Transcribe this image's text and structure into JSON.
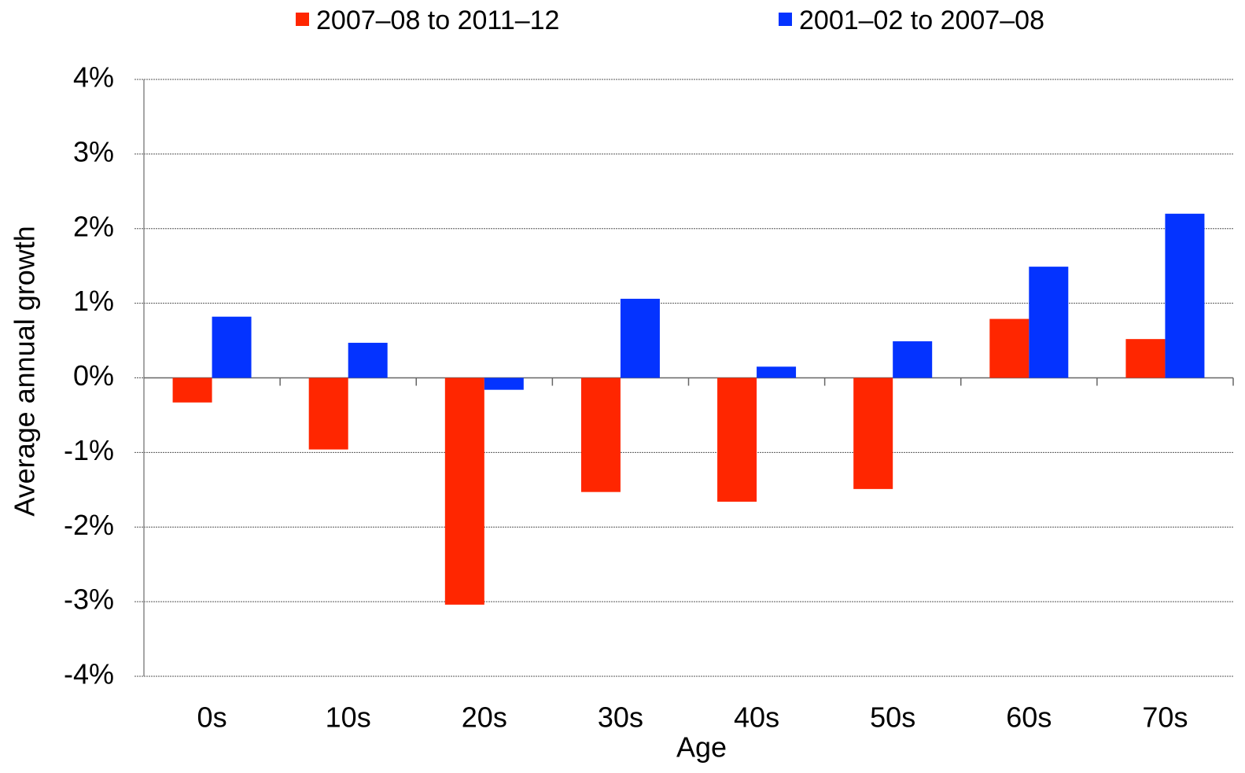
{
  "chart_data": {
    "type": "bar",
    "categories": [
      "0s",
      "10s",
      "20s",
      "30s",
      "40s",
      "50s",
      "60s",
      "70s"
    ],
    "series": [
      {
        "name": "2007–08 to 2011–12",
        "color": "#ff2600",
        "values": [
          -0.33,
          -0.96,
          -3.04,
          -1.53,
          -1.66,
          -1.49,
          0.79,
          0.52
        ]
      },
      {
        "name": "2001–02 to 2007–08",
        "color": "#0433ff",
        "values": [
          0.82,
          0.47,
          -0.16,
          1.06,
          0.15,
          0.49,
          1.49,
          2.2
        ]
      }
    ],
    "x_label": "Age",
    "y_label": "Average annual growth",
    "ylim": [
      -4,
      4
    ],
    "yticks": [
      {
        "value": -4,
        "label": "-4%"
      },
      {
        "value": -3,
        "label": "-3%"
      },
      {
        "value": -2,
        "label": "-2%"
      },
      {
        "value": -1,
        "label": "-1%"
      },
      {
        "value": 0,
        "label": "0%"
      },
      {
        "value": 1,
        "label": "1%"
      },
      {
        "value": 2,
        "label": "2%"
      },
      {
        "value": 3,
        "label": "3%"
      },
      {
        "value": 4,
        "label": "4%"
      }
    ],
    "grid": true,
    "legend": "top"
  }
}
